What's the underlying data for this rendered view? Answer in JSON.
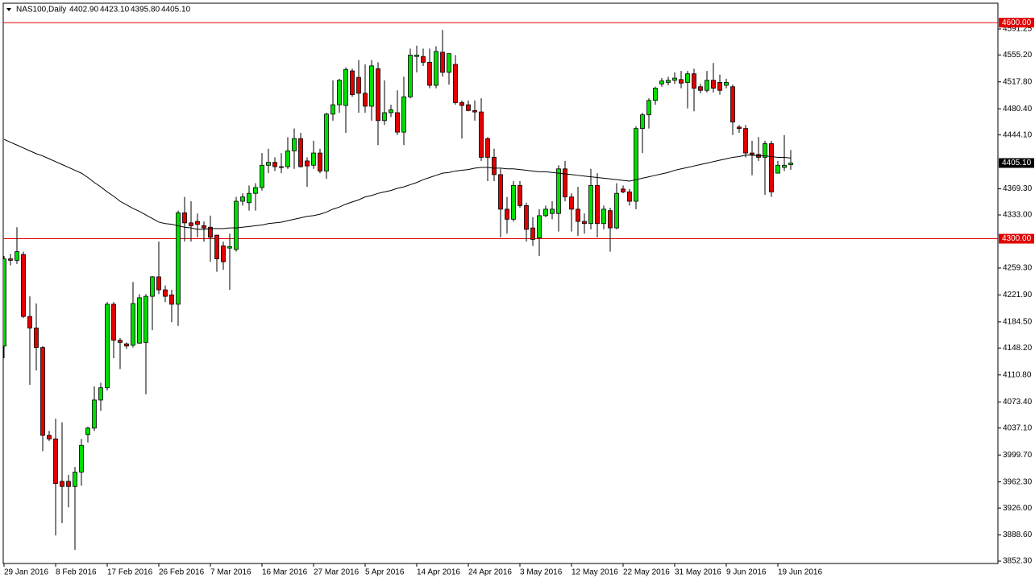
{
  "chart_data": {
    "type": "candlestick",
    "title": "NAS100,Daily",
    "header_values": [
      "4402.90",
      "4423.10",
      "4395.80",
      "4405.10"
    ],
    "categories": [
      "29 Jan 2016",
      null,
      null,
      null,
      null,
      null,
      null,
      null,
      "8 Feb 2016",
      null,
      null,
      null,
      null,
      null,
      null,
      null,
      "17 Feb 2016",
      null,
      null,
      null,
      null,
      null,
      null,
      null,
      "26 Feb 2016",
      null,
      null,
      null,
      null,
      null,
      null,
      null,
      "7 Mar 2016",
      null,
      null,
      null,
      null,
      null,
      null,
      null,
      "16 Mar 2016",
      null,
      null,
      null,
      null,
      null,
      null,
      null,
      "27 Mar 2016",
      null,
      null,
      null,
      null,
      null,
      null,
      null,
      "5 Apr 2016",
      null,
      null,
      null,
      null,
      null,
      null,
      null,
      "14 Apr 2016",
      null,
      null,
      null,
      null,
      null,
      null,
      null,
      "24 Apr 2016",
      null,
      null,
      null,
      null,
      null,
      null,
      null,
      "3 May 2016",
      null,
      null,
      null,
      null,
      null,
      null,
      null,
      "12 May 2016",
      null,
      null,
      null,
      null,
      null,
      null,
      null,
      "22 May 2016",
      null,
      null,
      null,
      null,
      null,
      null,
      null,
      "31 May 2016",
      null,
      null,
      null,
      null,
      null,
      null,
      null,
      "9 Jun 2016",
      null,
      null,
      null,
      null,
      null,
      null,
      null,
      "19 Jun 2016",
      null,
      null
    ],
    "open": [
      4151,
      4272,
      4270,
      4278,
      4192,
      4176,
      4149,
      4027,
      4022,
      3963,
      3963,
      3956,
      3976,
      4028,
      4037,
      4076,
      4093,
      4209,
      4159,
      4154,
      4152,
      4155,
      4156,
      4220,
      4247,
      4229,
      4222,
      4209,
      4336,
      4322,
      4324,
      4318,
      4316,
      4305,
      4290,
      4287,
      4285,
      4352,
      4350,
      4363,
      4371,
      4402,
      4406,
      4400,
      4400,
      4422,
      4439,
      4408,
      4402,
      4419,
      4394,
      4473,
      4486,
      4485,
      4533,
      4524,
      4502,
      4484,
      4536,
      4464,
      4475,
      4475,
      4448,
      4497,
      4553,
      4553,
      4545,
      4513,
      4559,
      4531,
      4542,
      4489,
      4486,
      4478,
      4476,
      4439,
      4413,
      4389,
      4341,
      4327,
      4374,
      4346,
      4315,
      4301,
      4332,
      4335,
      4335,
      4397,
      4358,
      4341,
      4324,
      4321,
      4374,
      4321,
      4339,
      4315,
      4369,
      4365,
      4352,
      4453,
      4472,
      4492,
      4515,
      4517,
      4520,
      4521,
      4517,
      4529,
      4511,
      4506,
      4520,
      4517,
      4513,
      4511,
      4455,
      4453,
      4419,
      4417,
      4413,
      4432,
      4391,
      4399,
      4402.9
    ],
    "high": [
      4276,
      4279,
      4316,
      4282,
      4220,
      4210,
      4151,
      4033,
      4050,
      4045,
      3972,
      3983,
      4022,
      4039,
      4095,
      4100,
      4212,
      4212,
      4162,
      4156,
      4240,
      4223,
      4223,
      4248,
      4296,
      4235,
      4229,
      4339,
      4358,
      4352,
      4335,
      4324,
      4332,
      4305,
      4296,
      4307,
      4358,
      4363,
      4374,
      4377,
      4419,
      4425,
      4413,
      4419,
      4441,
      4453,
      4447,
      4413,
      4436,
      4425,
      4475,
      4520,
      4522,
      4538,
      4536,
      4548,
      4542,
      4548,
      4545,
      4520,
      4486,
      4506,
      4525,
      4564,
      4568,
      4564,
      4564,
      4567,
      4590,
      4557,
      4555,
      4492,
      4492,
      4492,
      4495,
      4441,
      4425,
      4397,
      4358,
      4380,
      4380,
      4350,
      4330,
      4341,
      4346,
      4352,
      4402,
      4408,
      4363,
      4372,
      4335,
      4397,
      4391,
      4346,
      4343,
      4377,
      4374,
      4369,
      4456,
      4475,
      4495,
      4511,
      4523,
      4525,
      4531,
      4533,
      4533,
      4536,
      4515,
      4533,
      4544,
      4528,
      4522,
      4514,
      4458,
      4458,
      4436,
      4441,
      4436,
      4436,
      4408,
      4444,
      4423.1
    ],
    "low": [
      4134,
      4263,
      4265,
      4190,
      4097,
      4117,
      4005,
      4019,
      3888,
      3905,
      3927,
      3868,
      3957,
      4017,
      4033,
      4061,
      4089,
      4134,
      4119,
      4147,
      4149,
      4154,
      4084,
      4173,
      4223,
      4212,
      4184,
      4179,
      4296,
      4296,
      4302,
      4296,
      4268,
      4254,
      4257,
      4229,
      4282,
      4346,
      4339,
      4339,
      4367,
      4391,
      4394,
      4391,
      4397,
      4397,
      4399,
      4372,
      4397,
      4391,
      4383,
      4464,
      4475,
      4447,
      4497,
      4475,
      4475,
      4464,
      4430,
      4458,
      4469,
      4444,
      4430,
      4495,
      4531,
      4540,
      4509,
      4509,
      4525,
      4514,
      4486,
      4439,
      4477,
      4464,
      4408,
      4380,
      4380,
      4302,
      4307,
      4324,
      4343,
      4296,
      4290,
      4276,
      4330,
      4327,
      4310,
      4352,
      4310,
      4304,
      4307,
      4313,
      4302,
      4313,
      4282,
      4313,
      4363,
      4346,
      4341,
      4419,
      4453,
      4486,
      4511,
      4513,
      4515,
      4509,
      4481,
      4477,
      4502,
      4503,
      4503,
      4500,
      4509,
      4444,
      4447,
      4413,
      4388,
      4408,
      4361,
      4358,
      4391,
      4394,
      4395.8
    ],
    "close": [
      4272,
      4270,
      4282,
      4192,
      4176,
      4149,
      4027,
      4022,
      3960,
      3956,
      3956,
      3976,
      4013,
      4037,
      4076,
      4093,
      4209,
      4159,
      4156,
      4151,
      4210,
      4218,
      4220,
      4247,
      4229,
      4220,
      4209,
      4336,
      4322,
      4318,
      4320,
      4315,
      4302,
      4272,
      4268,
      4289,
      4352,
      4358,
      4363,
      4371,
      4402,
      4406,
      4400,
      4399,
      4422,
      4439,
      4400,
      4401,
      4419,
      4394,
      4473,
      4486,
      4520,
      4535,
      4500,
      4502,
      4484,
      4540,
      4464,
      4475,
      4479,
      4448,
      4497,
      4555,
      4555,
      4545,
      4513,
      4560,
      4531,
      4557,
      4489,
      4485,
      4478,
      4476,
      4413,
      4413,
      4389,
      4341,
      4327,
      4374,
      4346,
      4313,
      4299,
      4332,
      4341,
      4341,
      4397,
      4358,
      4341,
      4324,
      4321,
      4374,
      4321,
      4341,
      4315,
      4363,
      4365,
      4352,
      4453,
      4472,
      4492,
      4509,
      4519,
      4520,
      4523,
      4516,
      4529,
      4509,
      4506,
      4520,
      4509,
      4506,
      4517,
      4462,
      4453,
      4419,
      4417,
      4413,
      4432,
      4365,
      4402,
      4402,
      4405.1
    ],
    "up_color": "#00dd00",
    "down_color": "#e00000",
    "moving_average": {
      "color": "#000000",
      "values": [
        4438,
        4434,
        4430,
        4426,
        4422,
        4418,
        4415,
        4411,
        4407,
        4403,
        4399,
        4395,
        4391,
        4385,
        4378,
        4372,
        4365,
        4359,
        4352,
        4347,
        4342,
        4338,
        4333,
        4328,
        4323,
        4321,
        4320,
        4318,
        4316,
        4315,
        4313,
        4313,
        4314,
        4314,
        4314,
        4315,
        4315,
        4316,
        4317,
        4318,
        4319,
        4321,
        4322,
        4323,
        4325,
        4327,
        4329,
        4331,
        4332,
        4334,
        4337,
        4341,
        4344,
        4348,
        4351,
        4354,
        4358,
        4360,
        4363,
        4365,
        4367,
        4370,
        4372,
        4375,
        4378,
        4382,
        4385,
        4388,
        4391,
        4392,
        4394,
        4395,
        4396,
        4398,
        4399,
        4399,
        4398,
        4398,
        4397,
        4397,
        4396,
        4395,
        4394,
        4393,
        4393,
        4392,
        4391,
        4390,
        4389,
        4388,
        4387,
        4386,
        4385,
        4384,
        4383,
        4382,
        4381,
        4380,
        4382,
        4384,
        4386,
        4388,
        4390,
        4392,
        4395,
        4397,
        4399,
        4401,
        4403,
        4405,
        4407,
        4409,
        4411,
        4413,
        4414,
        4416,
        4416,
        4415,
        4415,
        4414,
        4413,
        4413,
        4412
      ]
    },
    "hlines": [
      {
        "value": 4600,
        "label": "4600.00"
      },
      {
        "value": 4300,
        "label": "4300.00"
      }
    ],
    "hline_color": "#e00000",
    "current_price": {
      "value": 4405.1,
      "label": "4405.10"
    },
    "ylim": [
      3849,
      4627
    ],
    "yticks": [
      {
        "value": 4591.25,
        "label": "4591.25"
      },
      {
        "value": 4555.2,
        "label": "4555.20"
      },
      {
        "value": 4517.8,
        "label": "4517.80"
      },
      {
        "value": 4480.4,
        "label": "4480.40"
      },
      {
        "value": 4444.1,
        "label": "4444.10"
      },
      {
        "value": 4369.3,
        "label": "4369.30"
      },
      {
        "value": 4333,
        "label": "4333.00"
      },
      {
        "value": 4259.3,
        "label": "4259.30"
      },
      {
        "value": 4221.9,
        "label": "4221.90"
      },
      {
        "value": 4184.5,
        "label": "4184.50"
      },
      {
        "value": 4148.2,
        "label": "4148.20"
      },
      {
        "value": 4110.8,
        "label": "4110.80"
      },
      {
        "value": 4073.4,
        "label": "4073.40"
      },
      {
        "value": 4037.1,
        "label": "4037.10"
      },
      {
        "value": 3999.7,
        "label": "3999.70"
      },
      {
        "value": 3962.3,
        "label": "3962.30"
      },
      {
        "value": 3926,
        "label": "3926.00"
      },
      {
        "value": 3888.6,
        "label": "3888.60"
      },
      {
        "value": 3852.3,
        "label": "3852.30"
      }
    ]
  }
}
